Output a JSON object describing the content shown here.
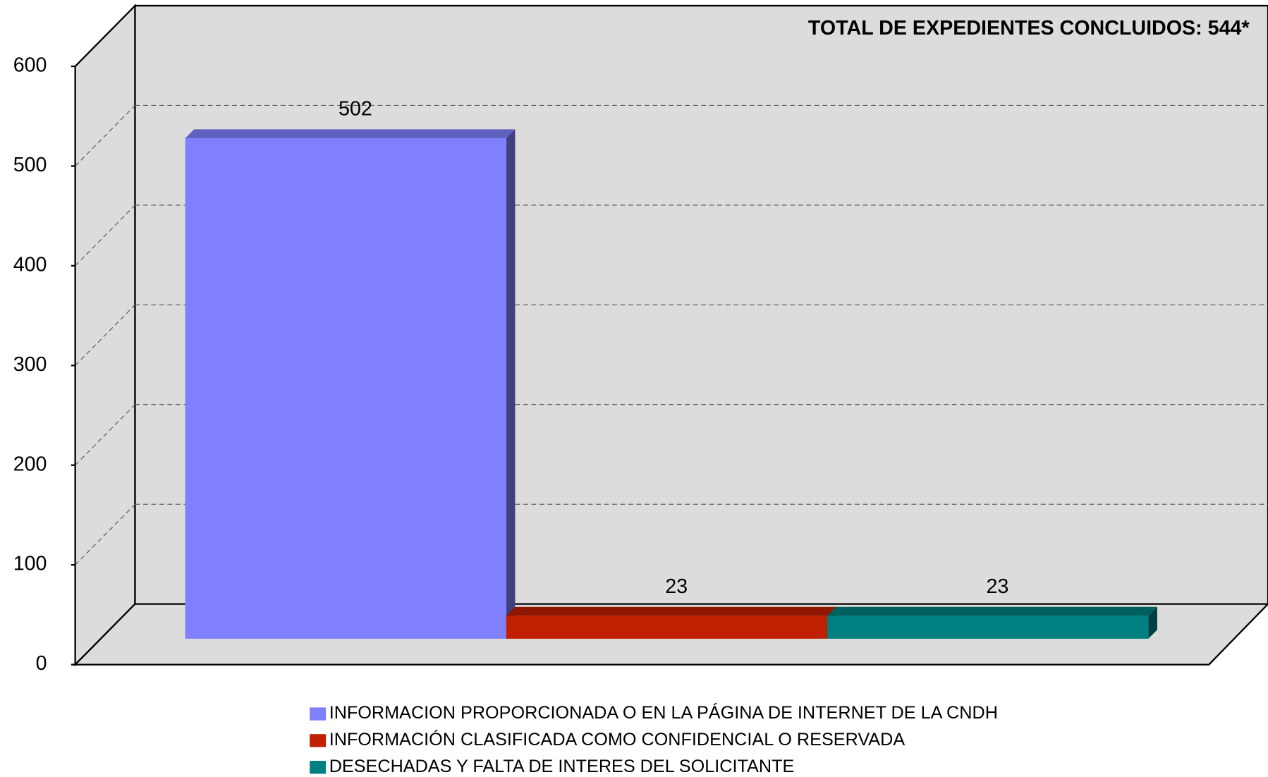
{
  "chart_data": {
    "type": "bar",
    "annotation": "TOTAL DE EXPEDIENTES CONCLUIDOS: 544*",
    "series": [
      {
        "name": "INFORMACION PROPORCIONADA O EN LA PÁGINA DE INTERNET DE LA CNDH",
        "color": "#8080ff",
        "values": [
          502
        ]
      },
      {
        "name": "INFORMACIÓN CLASIFICADA COMO CONFIDENCIAL O RESERVADA",
        "color": "#c02000",
        "values": [
          23
        ]
      },
      {
        "name": "DESECHADAS Y FALTA DE INTERES DEL SOLICITANTE",
        "color": "#008080",
        "values": [
          23
        ]
      }
    ],
    "ylim": [
      0,
      600
    ],
    "yticks": [
      0,
      100,
      200,
      300,
      400,
      500,
      600
    ],
    "grid": true
  }
}
